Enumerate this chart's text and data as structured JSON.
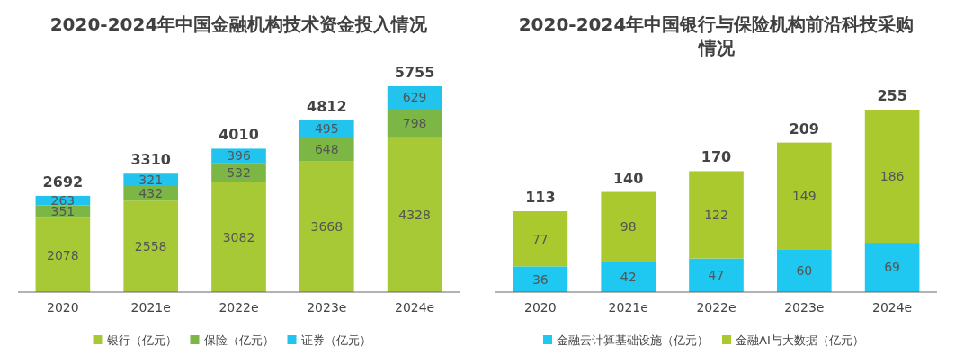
{
  "chart_data": [
    {
      "type": "bar",
      "title": "2020-2024年中国金融机构技术资金投入情况",
      "categories": [
        "2020",
        "2021e",
        "2022e",
        "2023e",
        "2024e"
      ],
      "stacked": true,
      "data_labels": true,
      "legend": "bottom",
      "grid": false,
      "totals": [
        "2692",
        "3310",
        "4010",
        "4812",
        "5755"
      ],
      "series": [
        {
          "name": "银行（亿元）",
          "color": "#a6c935",
          "values": [
            2078,
            2558,
            3082,
            3668,
            4328
          ]
        },
        {
          "name": "保险（亿元）",
          "color": "#7cb645",
          "values": [
            351,
            432,
            532,
            648,
            798
          ]
        },
        {
          "name": "证券（亿元）",
          "color": "#22c4ee",
          "values": [
            263,
            321,
            396,
            495,
            629
          ]
        }
      ]
    },
    {
      "type": "bar",
      "title": "2020-2024年中国银行与保险机构前沿科技采购情况",
      "categories": [
        "2020",
        "2021e",
        "2022e",
        "2023e",
        "2024e"
      ],
      "stacked": true,
      "data_labels": true,
      "legend": "bottom",
      "grid": false,
      "totals": [
        "113",
        "140",
        "170",
        "209",
        "255"
      ],
      "series": [
        {
          "name": "金融云计算基础设施（亿元）",
          "color": "#1ec8f0",
          "values": [
            36,
            42,
            47,
            60,
            69
          ]
        },
        {
          "name": "金融AI与大数据（亿元）",
          "color": "#a9c92e",
          "values": [
            77,
            98,
            122,
            149,
            186
          ]
        }
      ]
    }
  ]
}
